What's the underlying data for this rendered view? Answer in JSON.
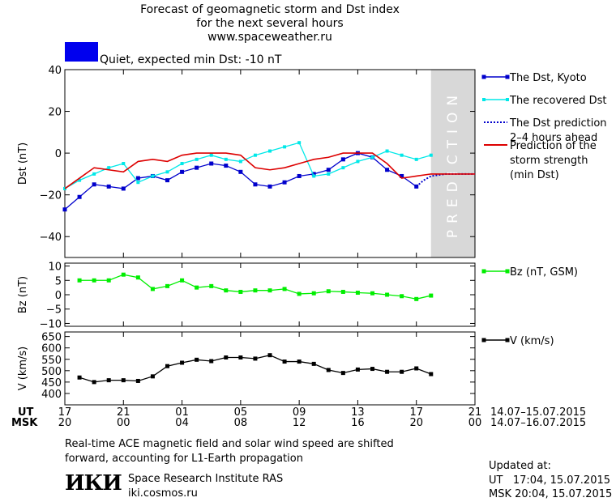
{
  "header": {
    "title_line1": "Forecast of geomagnetic storm and Dst index",
    "title_line2": "for the next several hours",
    "title_line3": "www.spaceweather.ru",
    "status_text": "Quiet, expected min Dst: -10 nT",
    "status_color": "#0000ee"
  },
  "colors": {
    "dst_kyoto": "#0000cc",
    "dst_recovered": "#00e8e8",
    "dst_prediction": "#0000cc",
    "storm_strength": "#dd0000",
    "bz": "#00ee00",
    "v": "#000000",
    "prediction_band": "#d8d8d8"
  },
  "chart_data": [
    {
      "type": "line",
      "ylabel": "Dst (nT)",
      "ylim": [
        -50,
        40
      ],
      "yticks": [
        40,
        20,
        0,
        -20,
        -40
      ],
      "prediction_label": "PREDICTION",
      "legend": [
        {
          "label": "The Dst, Kyoto",
          "series": "dst_kyoto"
        },
        {
          "label": "The recovered Dst",
          "series": "dst_recovered"
        },
        {
          "label": "The Dst prediction",
          "label2": "2–4 hours ahead",
          "series": "dst_prediction"
        },
        {
          "label": "Prediction of the",
          "label2": "storm strength",
          "label3": "(min Dst)",
          "series": "storm_strength"
        }
      ],
      "series": [
        {
          "key": "dst_kyoto",
          "x": [
            17,
            18,
            19,
            20,
            21,
            22,
            23,
            24,
            25,
            26,
            27,
            28,
            29,
            30,
            31,
            32,
            33,
            34,
            35,
            36,
            37,
            38,
            39,
            40,
            41
          ],
          "y": [
            -27,
            -21,
            -15,
            -16,
            -17,
            -12,
            -11,
            -13,
            -9,
            -7,
            -5,
            -6,
            -9,
            -15,
            -16,
            -14,
            -11,
            -10,
            -8,
            -3,
            0,
            -2,
            -8,
            -11,
            -16
          ]
        },
        {
          "key": "dst_recovered",
          "x": [
            17,
            18,
            19,
            20,
            21,
            22,
            23,
            24,
            25,
            26,
            27,
            28,
            29,
            30,
            31,
            32,
            33,
            34,
            35,
            36,
            37,
            38,
            39,
            40,
            41,
            42
          ],
          "y": [
            -17,
            -13,
            -10,
            -7,
            -5,
            -14,
            -11,
            -9,
            -5,
            -3,
            -1,
            -3,
            -4,
            -1,
            1,
            3,
            5,
            -11,
            -10,
            -7,
            -4,
            -2,
            1,
            -1,
            -3,
            -1
          ]
        },
        {
          "key": "dst_prediction",
          "x": [
            41,
            41.5,
            42,
            43,
            43.5,
            44,
            45
          ],
          "y": [
            -16,
            -13,
            -11,
            -10,
            -10,
            -10,
            -10
          ]
        },
        {
          "key": "storm_strength",
          "x": [
            17,
            18,
            19,
            20,
            21,
            22,
            23,
            24,
            25,
            26,
            27,
            28,
            29,
            30,
            31,
            32,
            33,
            34,
            35,
            36,
            37,
            38,
            39,
            40,
            41,
            42,
            43,
            44,
            45
          ],
          "y": [
            -17,
            -12,
            -7,
            -8,
            -9,
            -4,
            -3,
            -4,
            -1,
            0,
            0,
            0,
            -1,
            -7,
            -8,
            -7,
            -5,
            -3,
            -2,
            0,
            0,
            0,
            -5,
            -12,
            -11,
            -10,
            -10,
            -10,
            -10
          ]
        }
      ]
    },
    {
      "type": "line",
      "ylabel": "Bz (nT)",
      "ylim": [
        -11,
        11
      ],
      "yticks": [
        10,
        5,
        0,
        -5,
        -10
      ],
      "legend": [
        {
          "label": "Bz (nT, GSM)",
          "series": "bz"
        }
      ],
      "series": [
        {
          "key": "bz",
          "x": [
            18,
            19,
            20,
            21,
            22,
            23,
            24,
            25,
            26,
            27,
            28,
            29,
            30,
            31,
            32,
            33,
            34,
            35,
            36,
            37,
            38,
            39,
            40,
            41,
            42
          ],
          "y": [
            5,
            5,
            5,
            7,
            6,
            2,
            3,
            5,
            2.5,
            3,
            1.5,
            1,
            1.5,
            1.5,
            2,
            0.3,
            0.5,
            1.2,
            1,
            0.7,
            0.5,
            0,
            -0.5,
            -1.5,
            -0.3
          ]
        }
      ]
    },
    {
      "type": "line",
      "ylabel": "V (km/s)",
      "ylim": [
        350,
        670
      ],
      "yticks": [
        650,
        600,
        550,
        500,
        450,
        400
      ],
      "legend": [
        {
          "label": "V (km/s)",
          "series": "v"
        }
      ],
      "series": [
        {
          "key": "v",
          "x": [
            18,
            19,
            20,
            21,
            22,
            23,
            24,
            25,
            26,
            27,
            28,
            29,
            30,
            31,
            32,
            33,
            34,
            35,
            36,
            37,
            38,
            39,
            40,
            41,
            42
          ],
          "y": [
            470,
            450,
            458,
            458,
            455,
            475,
            520,
            535,
            548,
            542,
            558,
            558,
            553,
            568,
            540,
            540,
            530,
            503,
            490,
            505,
            508,
            495,
            495,
            510,
            485
          ]
        }
      ]
    }
  ],
  "time_axis": {
    "xlim": [
      17,
      45
    ],
    "ticks_x": [
      17,
      21,
      25,
      29,
      33,
      37,
      41,
      45
    ],
    "ut_label": "UT",
    "msk_label": "MSK",
    "ut_ticks": [
      "17",
      "21",
      "01",
      "05",
      "09",
      "13",
      "17",
      "21"
    ],
    "msk_ticks": [
      "20",
      "00",
      "04",
      "08",
      "12",
      "16",
      "20",
      "00"
    ],
    "ut_range": "14.07–15.07.2015",
    "msk_range": "14.07–16.07.2015"
  },
  "footer": {
    "note_line1": "Real-time ACE magnetic field and solar wind speed are shifted",
    "note_line2": "forward, accounting for L1-Earth propagation",
    "logo_text": "ИКИ",
    "institute": "Space Research Institute RAS",
    "site": "iki.cosmos.ru",
    "updated_label": "Updated at:",
    "updated_ut": "UT   17:04, 15.07.2015",
    "updated_msk": "MSK 20:04, 15.07.2015"
  }
}
